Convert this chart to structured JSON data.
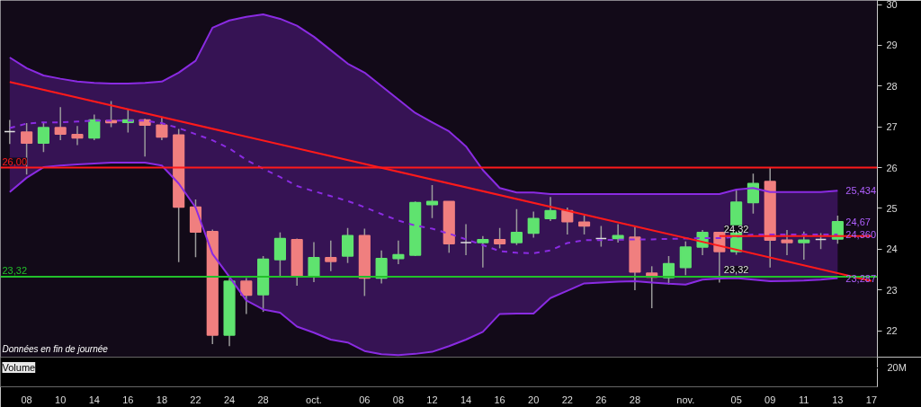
{
  "chart_data": {
    "type": "candlestick",
    "categories": [
      null,
      "08",
      null,
      "10",
      null,
      "14",
      null,
      "16",
      null,
      "18",
      null,
      "22",
      null,
      "24",
      null,
      "28",
      null,
      null,
      "oct.",
      null,
      null,
      "06",
      null,
      "08",
      null,
      "12",
      null,
      "14",
      null,
      "16",
      null,
      "20",
      null,
      "22",
      null,
      "26",
      null,
      "28",
      null,
      null,
      "nov.",
      null,
      null,
      "05",
      null,
      "09",
      null,
      "11",
      null,
      "13",
      null,
      "17"
    ],
    "ohlc": [
      [
        26.88,
        27.17,
        26.58,
        26.88
      ],
      [
        26.87,
        27.09,
        25.83,
        26.6
      ],
      [
        26.6,
        27.12,
        26.38,
        26.98
      ],
      [
        26.98,
        27.48,
        26.67,
        26.82
      ],
      [
        26.81,
        27.02,
        26.55,
        26.73
      ],
      [
        26.73,
        27.3,
        26.67,
        27.17
      ],
      [
        27.15,
        27.63,
        26.99,
        27.1
      ],
      [
        27.11,
        27.43,
        26.86,
        27.17
      ],
      [
        27.17,
        27.2,
        26.27,
        27.04
      ],
      [
        27.04,
        27.23,
        26.67,
        26.75
      ],
      [
        26.8,
        26.95,
        23.68,
        25.03
      ],
      [
        25.03,
        25.22,
        23.8,
        24.42
      ],
      [
        24.43,
        24.48,
        21.67,
        21.89
      ],
      [
        21.89,
        23.29,
        21.62,
        23.21
      ],
      [
        23.21,
        23.29,
        22.41,
        22.87
      ],
      [
        22.88,
        23.83,
        22.46,
        23.75
      ],
      [
        23.74,
        24.41,
        23.32,
        24.26
      ],
      [
        24.23,
        24.26,
        23.1,
        23.32
      ],
      [
        23.32,
        24.17,
        23.19,
        23.79
      ],
      [
        23.79,
        24.21,
        23.46,
        23.7
      ],
      [
        23.83,
        24.52,
        23.66,
        24.33
      ],
      [
        24.33,
        24.5,
        22.85,
        23.29
      ],
      [
        23.29,
        23.97,
        23.16,
        23.77
      ],
      [
        23.77,
        24.21,
        23.63,
        23.86
      ],
      [
        23.85,
        25.17,
        23.83,
        25.14
      ],
      [
        25.09,
        25.57,
        24.76,
        25.17
      ],
      [
        25.17,
        25.17,
        23.91,
        24.13
      ],
      [
        24.16,
        24.61,
        23.85,
        24.16
      ],
      [
        24.16,
        24.32,
        23.55,
        24.23
      ],
      [
        24.23,
        24.52,
        24.02,
        24.13
      ],
      [
        24.16,
        24.98,
        24.1,
        24.41
      ],
      [
        24.39,
        24.92,
        24.28,
        24.75
      ],
      [
        24.75,
        25.28,
        24.69,
        24.94
      ],
      [
        24.94,
        25.02,
        24.36,
        24.67
      ],
      [
        24.66,
        24.82,
        24.36,
        24.57
      ],
      [
        24.26,
        24.57,
        24.06,
        24.26
      ],
      [
        24.26,
        24.61,
        24.16,
        24.33
      ],
      [
        24.29,
        24.54,
        22.99,
        23.44
      ],
      [
        23.41,
        23.58,
        22.55,
        23.31
      ],
      [
        23.3,
        23.83,
        23.13,
        23.64
      ],
      [
        23.55,
        24.19,
        23.36,
        24.05
      ],
      [
        24.05,
        24.47,
        23.85,
        24.41
      ],
      [
        24.41,
        24.41,
        23.18,
        23.94
      ],
      [
        23.94,
        25.46,
        23.86,
        25.15
      ],
      [
        25.14,
        25.85,
        24.87,
        25.61
      ],
      [
        25.66,
        25.99,
        23.55,
        24.22
      ],
      [
        24.22,
        24.47,
        23.85,
        24.16
      ],
      [
        24.16,
        24.43,
        23.74,
        24.22
      ],
      [
        24.24,
        24.39,
        24.0,
        24.24
      ],
      [
        24.25,
        24.82,
        24.13,
        24.67
      ],
      null,
      null
    ],
    "colors": [
      "#e0e0e0",
      "#f07f7f",
      "#5fe36f",
      "#f07f7f",
      "#f07f7f",
      "#5fe36f",
      "#f07f7f",
      "#5fe36f",
      "#f07f7f",
      "#f07f7f",
      "#f07f7f",
      "#f07f7f",
      "#f07f7f",
      "#5fe36f",
      "#f07f7f",
      "#5fe36f",
      "#5fe36f",
      "#f07f7f",
      "#5fe36f",
      "#f07f7f",
      "#5fe36f",
      "#f07f7f",
      "#5fe36f",
      "#5fe36f",
      "#5fe36f",
      "#5fe36f",
      "#f07f7f",
      "#e0e0e0",
      "#5fe36f",
      "#f07f7f",
      "#5fe36f",
      "#5fe36f",
      "#5fe36f",
      "#f07f7f",
      "#f07f7f",
      "#e0e0e0",
      "#5fe36f",
      "#f07f7f",
      "#f07f7f",
      "#5fe36f",
      "#5fe36f",
      "#5fe36f",
      "#f07f7f",
      "#5fe36f",
      "#5fe36f",
      "#f07f7f",
      "#f07f7f",
      "#5fe36f",
      "#e0e0e0",
      "#5fe36f",
      null,
      null
    ],
    "series": [
      {
        "type": "line",
        "line_style": "dashed",
        "color": "#8a2be2",
        "values": [
          26.97,
          27.08,
          27.11,
          27.11,
          27.13,
          27.15,
          27.15,
          27.15,
          27.15,
          27.09,
          26.97,
          26.82,
          26.67,
          26.47,
          26.19,
          25.97,
          25.77,
          25.55,
          25.42,
          25.3,
          25.18,
          25.03,
          24.86,
          24.7,
          24.58,
          24.5,
          24.38,
          24.24,
          24.1,
          23.95,
          23.91,
          23.9,
          23.97,
          24.15,
          24.22,
          24.22,
          24.23,
          24.24,
          24.24,
          24.25,
          24.26,
          24.27,
          24.27,
          24.3,
          24.36,
          24.36,
          24.36,
          24.36,
          24.36,
          24.36,
          null,
          null
        ],
        "lower": [
          25.4,
          25.75,
          26.01,
          26.05,
          26.08,
          26.1,
          26.12,
          26.12,
          26.12,
          26.05,
          25.61,
          25.02,
          23.88,
          23.32,
          22.74,
          22.52,
          22.44,
          22.1,
          21.95,
          21.78,
          21.71,
          21.5,
          21.42,
          21.4,
          21.43,
          21.48,
          21.62,
          21.78,
          21.97,
          22.41,
          22.42,
          22.42,
          22.8,
          22.98,
          23.16,
          23.18,
          23.2,
          23.21,
          23.18,
          23.15,
          23.13,
          23.25,
          23.28,
          23.29,
          23.25,
          23.21,
          23.22,
          23.23,
          23.25,
          23.287,
          null,
          null
        ],
        "upper": [
          28.7,
          28.44,
          28.26,
          28.18,
          28.11,
          28.08,
          28.06,
          28.06,
          28.08,
          28.11,
          28.33,
          28.62,
          29.43,
          29.61,
          29.7,
          29.76,
          29.65,
          29.48,
          29.21,
          28.88,
          28.55,
          28.33,
          28.0,
          27.67,
          27.34,
          27.11,
          26.89,
          26.52,
          25.94,
          25.5,
          25.39,
          25.39,
          25.35,
          25.35,
          25.35,
          25.35,
          25.35,
          25.35,
          25.35,
          25.35,
          25.35,
          25.35,
          25.35,
          25.46,
          25.5,
          25.4,
          25.4,
          25.4,
          25.4,
          25.434,
          null,
          null
        ]
      },
      {
        "type": "line",
        "color": "#8a2be2",
        "values": [
          28.7,
          28.44,
          28.26,
          28.18,
          28.11,
          28.08,
          28.06,
          28.06,
          28.08,
          28.11,
          28.33,
          28.62,
          29.43,
          29.61,
          29.7,
          29.76,
          29.65,
          29.48,
          29.21,
          28.88,
          28.55,
          28.33,
          28.0,
          27.67,
          27.34,
          27.11,
          26.89,
          26.52,
          25.94,
          25.5,
          25.39,
          25.39,
          25.35,
          25.35,
          25.35,
          25.35,
          25.35,
          25.35,
          25.35,
          25.35,
          25.35,
          25.35,
          25.35,
          25.46,
          25.5,
          25.4,
          25.4,
          25.4,
          25.4,
          25.434,
          null,
          null
        ]
      },
      {
        "type": "line",
        "color": "#8a2be2",
        "values": [
          25.4,
          25.75,
          26.01,
          26.05,
          26.08,
          26.1,
          26.12,
          26.12,
          26.12,
          26.05,
          25.61,
          25.02,
          23.88,
          23.32,
          22.74,
          22.52,
          22.44,
          22.1,
          21.95,
          21.78,
          21.71,
          21.5,
          21.42,
          21.4,
          21.43,
          21.48,
          21.62,
          21.78,
          21.97,
          22.41,
          22.42,
          22.42,
          22.8,
          22.98,
          23.16,
          23.18,
          23.2,
          23.21,
          23.18,
          23.15,
          23.13,
          23.25,
          23.28,
          23.29,
          23.25,
          23.21,
          23.22,
          23.23,
          23.25,
          23.287,
          null,
          null
        ]
      },
      {
        "type": "line",
        "color": "#ff1a1a",
        "values": [
          28.1,
          null,
          null,
          null,
          null,
          null,
          null,
          null,
          null,
          null,
          null,
          null,
          null,
          null,
          null,
          null,
          null,
          null,
          null,
          null,
          null,
          null,
          null,
          null,
          null,
          null,
          null,
          null,
          null,
          null,
          null,
          null,
          null,
          null,
          null,
          null,
          null,
          null,
          null,
          null,
          null,
          null,
          null,
          null,
          null,
          null,
          null,
          null,
          null,
          null,
          null,
          23.22
        ]
      },
      {
        "type": "line",
        "color": "#ff1a1a",
        "values": [
          null,
          null,
          null,
          null,
          null,
          null,
          null,
          null,
          null,
          null,
          null,
          null,
          null,
          null,
          null,
          null,
          null,
          null,
          null,
          null,
          null,
          null,
          null,
          null,
          null,
          null,
          null,
          null,
          null,
          null,
          null,
          null,
          null,
          null,
          null,
          null,
          null,
          null,
          null,
          null,
          null,
          null,
          24.32,
          24.32,
          24.32,
          24.32,
          24.32,
          24.32,
          24.32,
          24.32,
          24.32,
          24.32
        ]
      }
    ],
    "ylim": [
      21.35,
      30.1
    ],
    "yticks": [
      22,
      23,
      24,
      25,
      26,
      27,
      28,
      29,
      30
    ],
    "ref_lines": [
      {
        "axis": "y",
        "value": 26.0,
        "label": "26,00",
        "color": "#ff1a1a"
      },
      {
        "axis": "y",
        "value": 23.32,
        "label": "23,32",
        "color": "#22c02a"
      }
    ],
    "annotations": [
      "Données en fin de journée",
      "Volume",
      "20M",
      {
        "text": "23,32",
        "x": "05",
        "y": 23.32
      },
      {
        "text": "24,32",
        "x": "05",
        "y": 24.32
      },
      {
        "text": "25,434",
        "x": "13",
        "y": 25.434
      },
      {
        "text": "24,67",
        "x": "13",
        "y": 24.67
      },
      {
        "text": "24,360",
        "x": "13",
        "y": 24.36
      },
      {
        "text": "23,287",
        "x": "13",
        "y": 23.287
      }
    ]
  }
}
